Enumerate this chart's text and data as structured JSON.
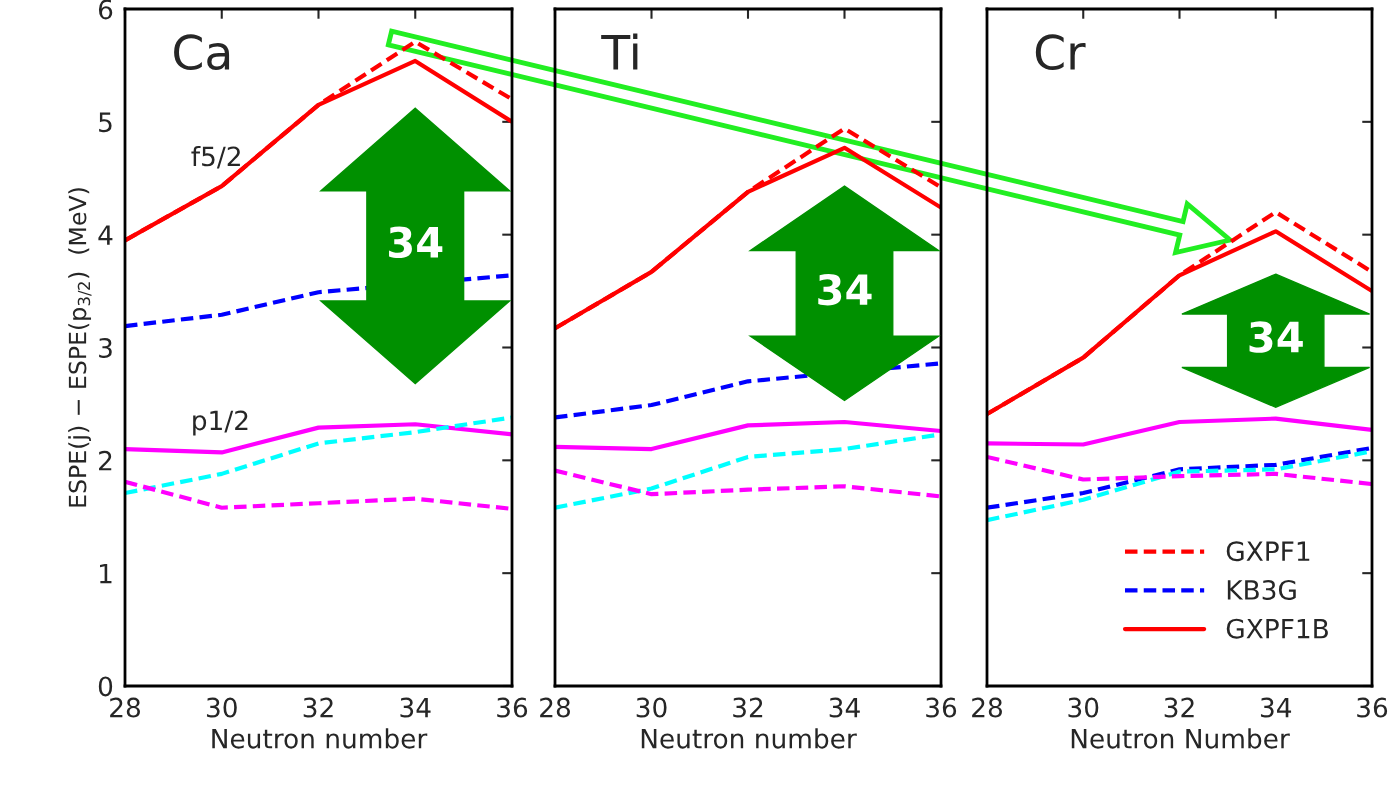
{
  "chart_data": [
    {
      "type": "line",
      "title": "Ca",
      "xlabel": "Neutron number",
      "ylabel": "ESPE(j) − ESPE(p$_{3/2}$)  (MeV)",
      "x": [
        28,
        30,
        32,
        34,
        36
      ],
      "xlim": [
        28,
        36
      ],
      "xticks": [
        28,
        30,
        32,
        34,
        36
      ],
      "ylim": [
        0,
        6
      ],
      "yticks": [
        0,
        1,
        2,
        3,
        4,
        5,
        6
      ],
      "grid": false,
      "annotations": [
        "f5/2",
        "p1/2",
        "34"
      ],
      "series": [
        {
          "color": "#ff0000",
          "line_style": "dashed",
          "values": [
            3.95,
            4.43,
            5.15,
            5.71,
            5.2
          ]
        },
        {
          "color": "#0000ff",
          "line_style": "dashed",
          "values": [
            3.19,
            3.29,
            3.49,
            null,
            3.64
          ]
        },
        {
          "color": "#ff0000",
          "line_style": "solid",
          "values": [
            3.95,
            4.43,
            5.15,
            5.54,
            5.0
          ]
        },
        {
          "color": "#ff00ff",
          "line_style": "solid",
          "values": [
            2.1,
            2.07,
            2.29,
            2.32,
            2.23
          ]
        },
        {
          "color": "#00ffff",
          "line_style": "dashed",
          "values": [
            1.71,
            1.88,
            2.15,
            2.25,
            2.38
          ]
        },
        {
          "color": "#ff00ff",
          "line_style": "dashed",
          "values": [
            1.81,
            1.58,
            1.62,
            1.66,
            1.57
          ]
        }
      ]
    },
    {
      "type": "line",
      "title": "Ti",
      "xlabel": "Neutron number",
      "x": [
        28,
        30,
        32,
        34,
        36
      ],
      "xlim": [
        28,
        36
      ],
      "xticks": [
        28,
        30,
        32,
        34,
        36
      ],
      "ylim": [
        0,
        6
      ],
      "yticks": [
        0,
        1,
        2,
        3,
        4,
        5,
        6
      ],
      "tick_labels": "x",
      "grid": false,
      "annotations": [
        "34"
      ],
      "series": [
        {
          "color": "#ff0000",
          "line_style": "dashed",
          "values": [
            3.17,
            3.67,
            4.38,
            4.94,
            4.42
          ]
        },
        {
          "color": "#0000ff",
          "line_style": "dashed",
          "values": [
            2.38,
            2.49,
            2.7,
            null,
            2.86
          ]
        },
        {
          "color": "#ff0000",
          "line_style": "solid",
          "values": [
            3.17,
            3.67,
            4.38,
            4.77,
            4.24
          ]
        },
        {
          "color": "#ff00ff",
          "line_style": "solid",
          "values": [
            2.12,
            2.1,
            2.31,
            2.34,
            2.26
          ]
        },
        {
          "color": "#00ffff",
          "line_style": "dashed",
          "values": [
            1.58,
            1.75,
            2.03,
            2.1,
            2.23
          ]
        },
        {
          "color": "#ff00ff",
          "line_style": "dashed",
          "values": [
            1.91,
            1.7,
            1.74,
            1.77,
            1.68
          ]
        }
      ]
    },
    {
      "type": "line",
      "title": "Cr",
      "xlabel": "Neutron Number",
      "x": [
        28,
        30,
        32,
        34,
        36
      ],
      "xlim": [
        28,
        36
      ],
      "xticks": [
        28,
        30,
        32,
        34,
        36
      ],
      "ylim": [
        0,
        6
      ],
      "yticks": [
        0,
        1,
        2,
        3,
        4,
        5,
        6
      ],
      "tick_labels": "x",
      "grid": false,
      "legend": "bottom right",
      "annotations": [
        "34"
      ],
      "series": [
        {
          "name": "GXPF1",
          "color": "#ff0000",
          "line_style": "dashed",
          "values": [
            2.41,
            2.91,
            3.64,
            4.2,
            3.67
          ]
        },
        {
          "name": "KB3G",
          "color": "#0000ff",
          "line_style": "dashed",
          "values": [
            1.58,
            1.71,
            1.92,
            1.96,
            2.11
          ]
        },
        {
          "name": "GXPF1B",
          "color": "#ff0000",
          "line_style": "solid",
          "values": [
            2.41,
            2.91,
            3.64,
            4.03,
            3.5
          ]
        },
        {
          "color": "#ff00ff",
          "line_style": "solid",
          "values": [
            2.15,
            2.14,
            2.34,
            2.37,
            2.27
          ]
        },
        {
          "color": "#00ffff",
          "line_style": "dashed",
          "values": [
            1.47,
            1.65,
            1.9,
            1.92,
            2.08
          ]
        },
        {
          "color": "#ff00ff",
          "line_style": "dashed",
          "values": [
            2.03,
            1.83,
            1.86,
            1.88,
            1.79
          ]
        }
      ]
    }
  ]
}
